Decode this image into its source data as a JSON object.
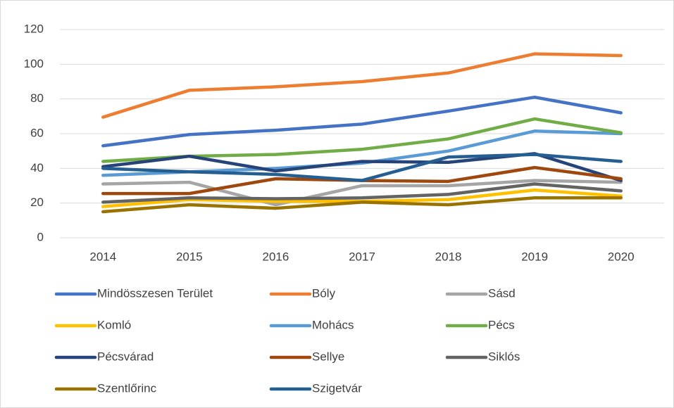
{
  "chart_data": {
    "type": "line",
    "categories": [
      "2014",
      "2015",
      "2016",
      "2017",
      "2018",
      "2019",
      "2020"
    ],
    "series": [
      {
        "name": "Mindösszesen Terület",
        "color": "#4472c4",
        "values": [
          53,
          59.5,
          62,
          65.5,
          73,
          81,
          72
        ]
      },
      {
        "name": "Bóly",
        "color": "#ed7d31",
        "values": [
          69.5,
          85,
          87,
          90,
          95,
          106,
          105
        ]
      },
      {
        "name": "Sásd",
        "color": "#a5a5a5",
        "values": [
          31,
          32,
          19,
          30,
          30,
          33,
          32
        ]
      },
      {
        "name": "Komló",
        "color": "#ffc000",
        "values": [
          18,
          22,
          21,
          21,
          22,
          27.5,
          24
        ]
      },
      {
        "name": "Mohács",
        "color": "#5b9bd5",
        "values": [
          36,
          38,
          40,
          43,
          50,
          61.5,
          60
        ]
      },
      {
        "name": "Pécs",
        "color": "#70ad47",
        "values": [
          44,
          47,
          48,
          51,
          57,
          68.5,
          60.5
        ]
      },
      {
        "name": "Pécsvárad",
        "color": "#264478",
        "values": [
          41,
          47,
          38.5,
          44,
          43.5,
          48.5,
          33
        ]
      },
      {
        "name": "Sellye",
        "color": "#9e480e",
        "values": [
          25.5,
          25.5,
          34,
          33,
          32.5,
          40.5,
          34
        ]
      },
      {
        "name": "Siklós",
        "color": "#636363",
        "values": [
          20.5,
          23,
          22.5,
          23,
          25,
          31,
          27
        ]
      },
      {
        "name": "Szentlőrinc",
        "color": "#997300",
        "values": [
          15,
          19,
          17,
          20.5,
          19,
          23,
          23
        ]
      },
      {
        "name": "Szigetvár",
        "color": "#255e91",
        "values": [
          40,
          38,
          36.5,
          33,
          46.5,
          48,
          44
        ]
      }
    ],
    "ylim": [
      0,
      120
    ],
    "yticks": [
      0,
      20,
      40,
      60,
      80,
      100,
      120
    ],
    "grid": true,
    "legend": "bottom"
  }
}
